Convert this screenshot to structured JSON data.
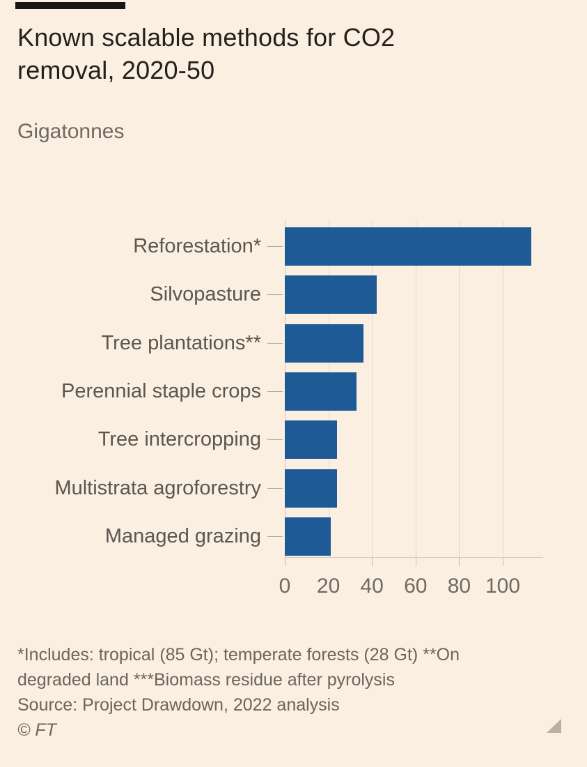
{
  "header": {
    "title_full": "Known scalable methods for CO2 removal, 2020-50",
    "title_lines": [
      "Known scalable methods for CO2",
      "removal, 2020-50"
    ],
    "subtitle": "Gigatonnes"
  },
  "chart_data": {
    "type": "bar",
    "orientation": "horizontal",
    "title": "Known scalable methods for CO2 removal, 2020-50",
    "ylabel": "",
    "xlabel": "Gigatonnes",
    "categories": [
      "Reforestation*",
      "Silvopasture",
      "Tree plantations**",
      "Perennial staple crops",
      "Tree intercropping",
      "Multistrata agroforestry",
      "Managed grazing"
    ],
    "values": [
      113,
      42,
      36,
      33,
      24,
      24,
      21
    ],
    "x_ticks": [
      0,
      20,
      40,
      60,
      80,
      100
    ],
    "xlim": [
      0,
      118.5
    ],
    "grid": true,
    "legend": false,
    "bar_color": "#1E5A96"
  },
  "footer": {
    "note_lines": [
      "*Includes: tropical (85 Gt); temperate forests (28 Gt) **On",
      "degraded land ***Biomass residue after pyrolysis"
    ],
    "note_full": "*Includes: tropical (85 Gt); temperate forests (28 Gt) **On degraded land ***Biomass residue after pyrolysis",
    "source": "Source: Project Drawdown, 2022 analysis",
    "copyright": "© FT"
  },
  "colors": {
    "background": "#FBEFE2",
    "bar": "#1E5A96",
    "title_text": "#241F1C",
    "gray_text": "#6F6962",
    "gridline": "#E2D7CB",
    "axis": "#C3B8AA",
    "tag": "#191715"
  }
}
